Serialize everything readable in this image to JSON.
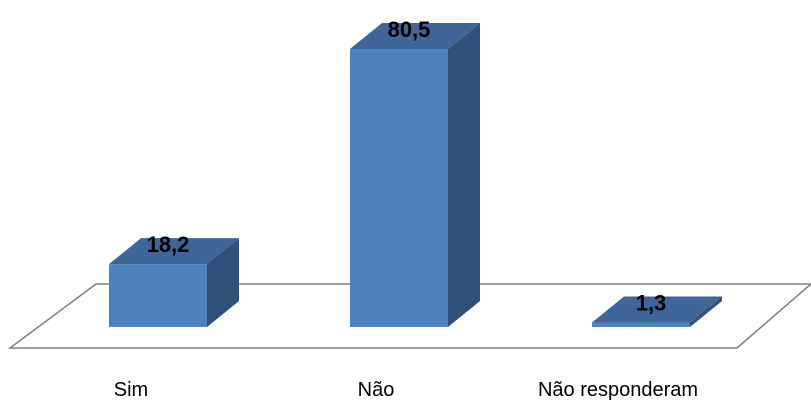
{
  "chart_data": {
    "type": "bar",
    "style": "3d-column",
    "categories": [
      "Sim",
      "Não",
      "Não responderam"
    ],
    "values": [
      18.2,
      80.5,
      1.3
    ],
    "value_labels": [
      "18,2",
      "80,5",
      "1,3"
    ],
    "title": "",
    "xlabel": "",
    "ylabel": "",
    "ylim": [
      0,
      80.5
    ],
    "grid": false,
    "legend": "none",
    "colors": {
      "bar_front": "#4f81bd",
      "bar_top": "#3e6699",
      "bar_side": "#2f5078",
      "floor_stroke": "#808080"
    }
  }
}
